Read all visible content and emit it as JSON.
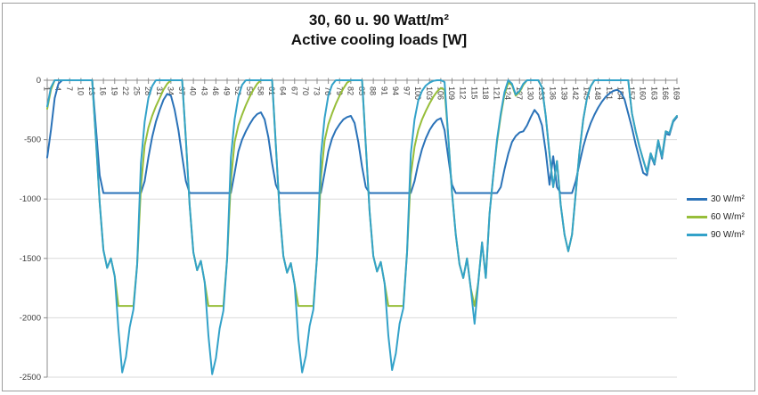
{
  "title": {
    "line1": "30, 60 u. 90 Watt/m²",
    "line2": "Active cooling loads [W]"
  },
  "colors": {
    "series_30": "#2a72b8",
    "series_60": "#97be3a",
    "series_90": "#33a2c9",
    "gridline": "#d9d9d9",
    "axis": "#8c8c8c",
    "label": "#404040",
    "border": "#9d9d9d"
  },
  "chart_data": {
    "type": "line",
    "title": "30, 60 u. 90 Watt/m²",
    "subtitle": "Active cooling loads [W]",
    "legend_position": "right",
    "grid": true,
    "x": {
      "min": 1,
      "max": 169,
      "ticks": [
        1,
        4,
        7,
        10,
        13,
        16,
        19,
        22,
        25,
        28,
        31,
        34,
        37,
        40,
        43,
        46,
        49,
        52,
        55,
        58,
        61,
        64,
        67,
        70,
        73,
        76,
        79,
        82,
        85,
        88,
        91,
        94,
        97,
        100,
        103,
        106,
        109,
        112,
        115,
        118,
        121,
        124,
        127,
        130,
        133,
        136,
        139,
        142,
        145,
        148,
        151,
        154,
        157,
        160,
        163,
        166,
        169
      ]
    },
    "y": {
      "min": -2500,
      "max": 0,
      "ticks": [
        0,
        -500,
        -1000,
        -1500,
        -2000,
        -2500
      ]
    },
    "series": [
      {
        "name": "30 W/m²",
        "color": "#2a72b8",
        "values": [
          -650,
          -420,
          -150,
          -30,
          0,
          0,
          0,
          0,
          0,
          0,
          0,
          0,
          0,
          -400,
          -800,
          -950,
          -950,
          -950,
          -950,
          -950,
          -950,
          -950,
          -950,
          -950,
          -950,
          -950,
          -850,
          -650,
          -480,
          -350,
          -250,
          -165,
          -115,
          -130,
          -250,
          -420,
          -640,
          -850,
          -950,
          -950,
          -950,
          -950,
          -950,
          -950,
          -950,
          -950,
          -950,
          -950,
          -950,
          -950,
          -780,
          -600,
          -500,
          -430,
          -370,
          -320,
          -285,
          -270,
          -330,
          -480,
          -700,
          -880,
          -950,
          -950,
          -950,
          -950,
          -950,
          -950,
          -950,
          -950,
          -950,
          -950,
          -950,
          -950,
          -780,
          -600,
          -490,
          -420,
          -370,
          -330,
          -310,
          -300,
          -360,
          -520,
          -730,
          -900,
          -950,
          -950,
          -950,
          -950,
          -950,
          -950,
          -950,
          -950,
          -950,
          -950,
          -950,
          -950,
          -850,
          -700,
          -580,
          -490,
          -420,
          -370,
          -335,
          -320,
          -420,
          -650,
          -880,
          -950,
          -950,
          -950,
          -950,
          -950,
          -950,
          -950,
          -950,
          -950,
          -950,
          -950,
          -950,
          -900,
          -750,
          -620,
          -520,
          -470,
          -440,
          -430,
          -380,
          -310,
          -250,
          -290,
          -380,
          -600,
          -880,
          -640,
          -900,
          -950,
          -950,
          -950,
          -950,
          -850,
          -700,
          -560,
          -450,
          -360,
          -290,
          -230,
          -180,
          -140,
          -110,
          -90,
          -80,
          -100,
          -160,
          -280,
          -400,
          -540,
          -660,
          -780,
          -800,
          -630,
          -710,
          -520,
          -660,
          -450,
          -460,
          -350,
          -310
        ]
      },
      {
        "name": "60 W/m²",
        "color": "#97be3a",
        "values": [
          -240,
          -80,
          0,
          0,
          0,
          0,
          0,
          0,
          0,
          0,
          0,
          0,
          0,
          -500,
          -1030,
          -1430,
          -1580,
          -1500,
          -1650,
          -1900,
          -1900,
          -1900,
          -1900,
          -1900,
          -1550,
          -900,
          -550,
          -400,
          -300,
          -220,
          -150,
          -80,
          -30,
          0,
          0,
          0,
          0,
          -500,
          -1050,
          -1450,
          -1600,
          -1520,
          -1700,
          -1900,
          -1900,
          -1900,
          -1900,
          -1900,
          -1500,
          -850,
          -520,
          -380,
          -290,
          -210,
          -140,
          -80,
          -30,
          0,
          0,
          0,
          0,
          -550,
          -1100,
          -1480,
          -1620,
          -1540,
          -1720,
          -1900,
          -1900,
          -1900,
          -1900,
          -1900,
          -1480,
          -830,
          -510,
          -370,
          -280,
          -200,
          -130,
          -70,
          -20,
          0,
          0,
          0,
          0,
          -550,
          -1100,
          -1480,
          -1610,
          -1530,
          -1710,
          -1900,
          -1900,
          -1900,
          -1900,
          -1900,
          -1450,
          -800,
          -560,
          -420,
          -330,
          -260,
          -195,
          -140,
          -95,
          -65,
          -80,
          -480,
          -950,
          -1300,
          -1550,
          -1665,
          -1500,
          -1750,
          -1900,
          -1700,
          -1365,
          -1665,
          -1125,
          -800,
          -520,
          -300,
          -120,
          -20,
          -40,
          -130,
          -100,
          -40,
          0,
          0,
          0,
          0,
          -60,
          -300,
          -620,
          -900,
          -680,
          -1050,
          -1300,
          -1440,
          -1300,
          -950,
          -600,
          -330,
          -150,
          -50,
          0,
          0,
          0,
          0,
          0,
          0,
          0,
          0,
          0,
          0,
          -280,
          -430,
          -560,
          -670,
          -775,
          -615,
          -700,
          -505,
          -645,
          -430,
          -445,
          -340,
          -300
        ]
      },
      {
        "name": "90 W/m²",
        "color": "#33a2c9",
        "values": [
          -220,
          -60,
          0,
          0,
          0,
          0,
          0,
          0,
          0,
          0,
          0,
          0,
          0,
          -500,
          -1030,
          -1430,
          -1580,
          -1500,
          -1650,
          -2100,
          -2460,
          -2330,
          -2080,
          -1930,
          -1550,
          -700,
          -350,
          -150,
          -50,
          0,
          0,
          0,
          0,
          0,
          0,
          0,
          0,
          -500,
          -1050,
          -1450,
          -1600,
          -1520,
          -1700,
          -2150,
          -2475,
          -2340,
          -2090,
          -1940,
          -1500,
          -650,
          -330,
          -140,
          -40,
          0,
          0,
          0,
          0,
          0,
          0,
          0,
          0,
          -550,
          -1100,
          -1480,
          -1620,
          -1540,
          -1720,
          -2180,
          -2460,
          -2320,
          -2070,
          -1930,
          -1480,
          -640,
          -320,
          -130,
          -40,
          0,
          0,
          0,
          0,
          0,
          0,
          0,
          0,
          -550,
          -1100,
          -1480,
          -1610,
          -1530,
          -1710,
          -2150,
          -2440,
          -2300,
          -2050,
          -1920,
          -1450,
          -620,
          -330,
          -170,
          -90,
          -45,
          -20,
          -5,
          0,
          0,
          -15,
          -480,
          -950,
          -1300,
          -1550,
          -1665,
          -1500,
          -1750,
          -2050,
          -1700,
          -1365,
          -1665,
          -1125,
          -800,
          -500,
          -280,
          -100,
          0,
          -30,
          -120,
          -90,
          -30,
          0,
          0,
          0,
          0,
          -60,
          -300,
          -620,
          -900,
          -680,
          -1050,
          -1300,
          -1440,
          -1300,
          -950,
          -600,
          -330,
          -150,
          -50,
          0,
          0,
          0,
          0,
          0,
          0,
          0,
          0,
          0,
          0,
          -280,
          -430,
          -560,
          -670,
          -775,
          -615,
          -700,
          -505,
          -645,
          -430,
          -445,
          -340,
          -300
        ]
      }
    ]
  }
}
